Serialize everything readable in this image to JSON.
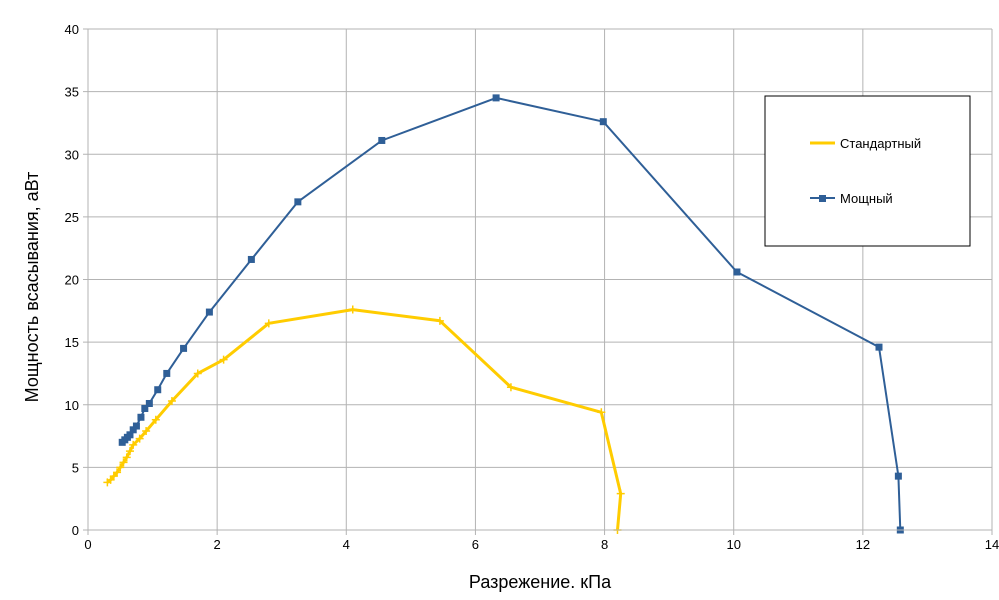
{
  "chart_data": {
    "type": "line",
    "xlabel": "Разрежение. кПа",
    "ylabel": "Мощность всасывания, аВт",
    "xlim": [
      0,
      14
    ],
    "ylim": [
      0,
      40
    ],
    "x_ticks": [
      0,
      2,
      4,
      6,
      8,
      10,
      12,
      14
    ],
    "y_ticks": [
      0,
      5,
      10,
      15,
      20,
      25,
      30,
      35,
      40
    ],
    "grid": true,
    "legend_position": "top-right",
    "series": [
      {
        "name": "Стандартный",
        "color": "#FFCC00",
        "marker": "plus",
        "x": [
          0.3,
          0.35,
          0.4,
          0.45,
          0.5,
          0.55,
          0.6,
          0.65,
          0.7,
          0.8,
          0.9,
          1.05,
          1.3,
          1.7,
          2.1,
          2.8,
          4.1,
          5.45,
          6.55,
          7.95,
          8.25,
          8.2
        ],
        "y": [
          3.8,
          4.0,
          4.3,
          4.6,
          5.0,
          5.4,
          5.8,
          6.3,
          6.8,
          7.3,
          7.9,
          8.8,
          10.3,
          12.5,
          13.6,
          16.5,
          17.6,
          16.7,
          11.4,
          9.4,
          2.9,
          0.0
        ]
      },
      {
        "name": "Мощный",
        "color": "#2F5F97",
        "marker": "square",
        "x": [
          0.53,
          0.57,
          0.61,
          0.65,
          0.7,
          0.75,
          0.82,
          0.88,
          0.95,
          1.08,
          1.22,
          1.48,
          1.88,
          2.53,
          3.25,
          4.55,
          6.32,
          7.98,
          10.05,
          12.25,
          12.55,
          12.58
        ],
        "y": [
          7.0,
          7.2,
          7.4,
          7.6,
          8.0,
          8.3,
          9.0,
          9.7,
          10.1,
          11.2,
          12.5,
          14.5,
          17.4,
          21.6,
          26.2,
          31.1,
          34.5,
          32.6,
          20.6,
          14.6,
          4.3,
          0.0
        ]
      }
    ]
  }
}
